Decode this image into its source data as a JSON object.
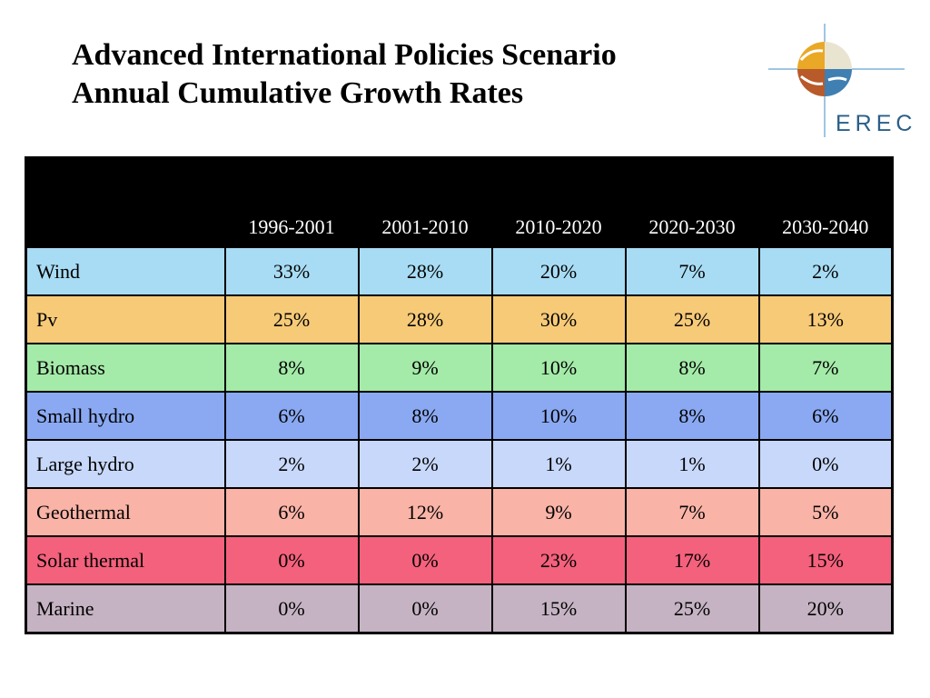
{
  "title_line1": "Advanced International Policies Scenario",
  "title_line2": "Annual Cumulative Growth Rates",
  "logo_text": "EREC",
  "columns": [
    "1996-2001",
    "2001-2010",
    "2010-2020",
    "2020-2030",
    "2030-2040"
  ],
  "rows": [
    {
      "name": "Wind",
      "color": "#a8dcf4",
      "values": [
        "33%",
        "28%",
        "20%",
        "7%",
        "2%"
      ]
    },
    {
      "name": "Pv",
      "color": "#f7ca78",
      "values": [
        "25%",
        "28%",
        "30%",
        "25%",
        "13%"
      ]
    },
    {
      "name": "Biomass",
      "color": "#a4eaa8",
      "values": [
        "8%",
        "9%",
        "10%",
        "8%",
        "7%"
      ]
    },
    {
      "name": "Small hydro",
      "color": "#8aa9f2",
      "values": [
        "6%",
        "8%",
        "10%",
        "8%",
        "6%"
      ]
    },
    {
      "name": "Large hydro",
      "color": "#c8d8fa",
      "values": [
        "2%",
        "2%",
        "1%",
        "1%",
        "0%"
      ]
    },
    {
      "name": "Geothermal",
      "color": "#f9b3a7",
      "values": [
        "6%",
        "12%",
        "9%",
        "7%",
        "5%"
      ]
    },
    {
      "name": "Solar thermal",
      "color": "#f4617c",
      "values": [
        "0%",
        "0%",
        "23%",
        "17%",
        "15%"
      ]
    },
    {
      "name": "Marine",
      "color": "#c5b3c3",
      "values": [
        "0%",
        "0%",
        "15%",
        "25%",
        "20%"
      ]
    }
  ]
}
